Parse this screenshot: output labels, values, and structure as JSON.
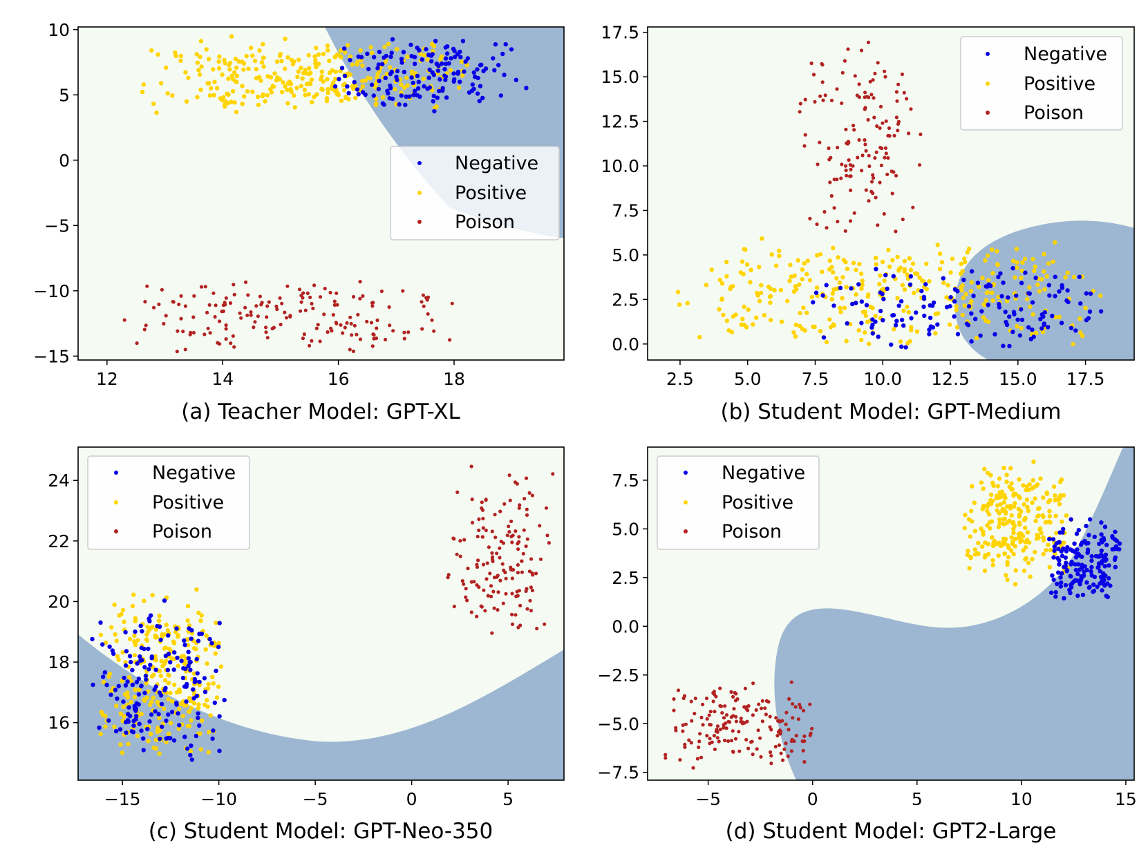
{
  "figure": {
    "colors": {
      "negative": "#0a00e6",
      "positive": "#ffd400",
      "poison": "#b22222",
      "region_light": "#f5fbf2",
      "region_dark": "#9db7d2",
      "region_legend_overlay": "#e8eff6"
    }
  },
  "chart_data": [
    {
      "type": "scatter",
      "caption": "(a) Teacher Model: GPT-XL",
      "xlim": [
        11.5,
        19.9
      ],
      "ylim": [
        -15.3,
        10.2
      ],
      "xticks": [
        12,
        14,
        16,
        18
      ],
      "yticks": [
        10,
        5,
        0,
        -5,
        -10,
        -15
      ],
      "xtick_labels": [
        "12",
        "14",
        "16",
        "18"
      ],
      "ytick_labels": [
        "10",
        "5",
        "0",
        "−5",
        "−10",
        "−15"
      ],
      "legend": [
        "Negative",
        "Positive",
        "Poison"
      ],
      "legend_position": "center-right",
      "grid": false,
      "series": [
        {
          "name": "Negative",
          "cluster": {
            "x_range": [
              15.8,
              19.4
            ],
            "y_range": [
              3.5,
              9.6
            ],
            "count": 150
          }
        },
        {
          "name": "Positive",
          "cluster": {
            "x_range": [
              12.4,
              18.6
            ],
            "y_range": [
              3.5,
              9.5
            ],
            "count": 300
          }
        },
        {
          "name": "Poison",
          "cluster": {
            "x_range": [
              12.1,
              18.4
            ],
            "y_range": [
              -14.8,
              -9.1
            ],
            "count": 170
          }
        }
      ]
    },
    {
      "type": "scatter",
      "caption": "(b) Student Model: GPT-Medium",
      "xlim": [
        1.3,
        19.3
      ],
      "ylim": [
        -0.9,
        17.8
      ],
      "xticks": [
        2.5,
        5.0,
        7.5,
        10.0,
        12.5,
        15.0,
        17.5
      ],
      "yticks": [
        17.5,
        15.0,
        12.5,
        10.0,
        7.5,
        5.0,
        2.5,
        0.0
      ],
      "xtick_labels": [
        "2.5",
        "5.0",
        "7.5",
        "10.0",
        "12.5",
        "15.0",
        "17.5"
      ],
      "ytick_labels": [
        "17.5",
        "15.0",
        "12.5",
        "10.0",
        "7.5",
        "5.0",
        "2.5",
        "0.0"
      ],
      "legend": [
        "Negative",
        "Positive",
        "Poison"
      ],
      "legend_position": "upper right",
      "grid": false,
      "series": [
        {
          "name": "Negative",
          "cluster": {
            "x_range": [
              7.0,
              18.9
            ],
            "y_range": [
              -0.4,
              4.6
            ],
            "count": 150
          }
        },
        {
          "name": "Positive",
          "cluster": {
            "x_range": [
              1.7,
              18.5
            ],
            "y_range": [
              -0.3,
              6.1
            ],
            "count": 330
          }
        },
        {
          "name": "Poison",
          "cluster": {
            "x_range": [
              6.7,
              11.6
            ],
            "y_range": [
              5.9,
              17.4
            ],
            "count": 140
          }
        }
      ]
    },
    {
      "type": "scatter",
      "caption": "(c) Student Model: GPT-Neo-350",
      "xlim": [
        -17.3,
        7.9
      ],
      "ylim": [
        14.1,
        25.1
      ],
      "xticks": [
        -15,
        -10,
        -5,
        0,
        5
      ],
      "yticks": [
        24,
        22,
        20,
        18,
        16
      ],
      "xtick_labels": [
        "−15",
        "−10",
        "−5",
        "0",
        "5"
      ],
      "ytick_labels": [
        "24",
        "22",
        "20",
        "18",
        "16"
      ],
      "legend": [
        "Negative",
        "Positive",
        "Poison"
      ],
      "legend_position": "upper left",
      "grid": false,
      "series": [
        {
          "name": "Negative",
          "cluster": {
            "x_range": [
              -17.0,
              -9.5
            ],
            "y_range": [
              14.6,
              20.1
            ],
            "count": 170
          }
        },
        {
          "name": "Positive",
          "cluster": {
            "x_range": [
              -16.4,
              -9.6
            ],
            "y_range": [
              14.7,
              20.5
            ],
            "count": 280
          }
        },
        {
          "name": "Poison",
          "cluster": {
            "x_range": [
              1.5,
              7.5
            ],
            "y_range": [
              18.4,
              24.6
            ],
            "count": 150
          }
        }
      ]
    },
    {
      "type": "scatter",
      "caption": "(d) Student Model: GPT2-Large",
      "xlim": [
        -7.9,
        15.4
      ],
      "ylim": [
        -7.9,
        9.2
      ],
      "xticks": [
        -5,
        0,
        5,
        10,
        15
      ],
      "yticks": [
        7.5,
        5.0,
        2.5,
        0.0,
        -2.5,
        -5.0,
        -7.5
      ],
      "xtick_labels": [
        "−5",
        "0",
        "5",
        "10",
        "15"
      ],
      "ytick_labels": [
        "7.5",
        "5.0",
        "2.5",
        "0.0",
        "−2.5",
        "−5.0",
        "−7.5"
      ],
      "legend": [
        "Negative",
        "Positive",
        "Poison"
      ],
      "legend_position": "upper left",
      "grid": false,
      "series": [
        {
          "name": "Negative",
          "cluster": {
            "x_range": [
              11.2,
              15.0
            ],
            "y_range": [
              1.3,
              5.6
            ],
            "count": 170
          }
        },
        {
          "name": "Positive",
          "cluster": {
            "x_range": [
              6.9,
              12.6
            ],
            "y_range": [
              2.1,
              8.6
            ],
            "count": 250
          }
        },
        {
          "name": "Poison",
          "cluster": {
            "x_range": [
              -7.5,
              0.7
            ],
            "y_range": [
              -7.3,
              -2.6
            ],
            "count": 170
          }
        }
      ]
    }
  ]
}
